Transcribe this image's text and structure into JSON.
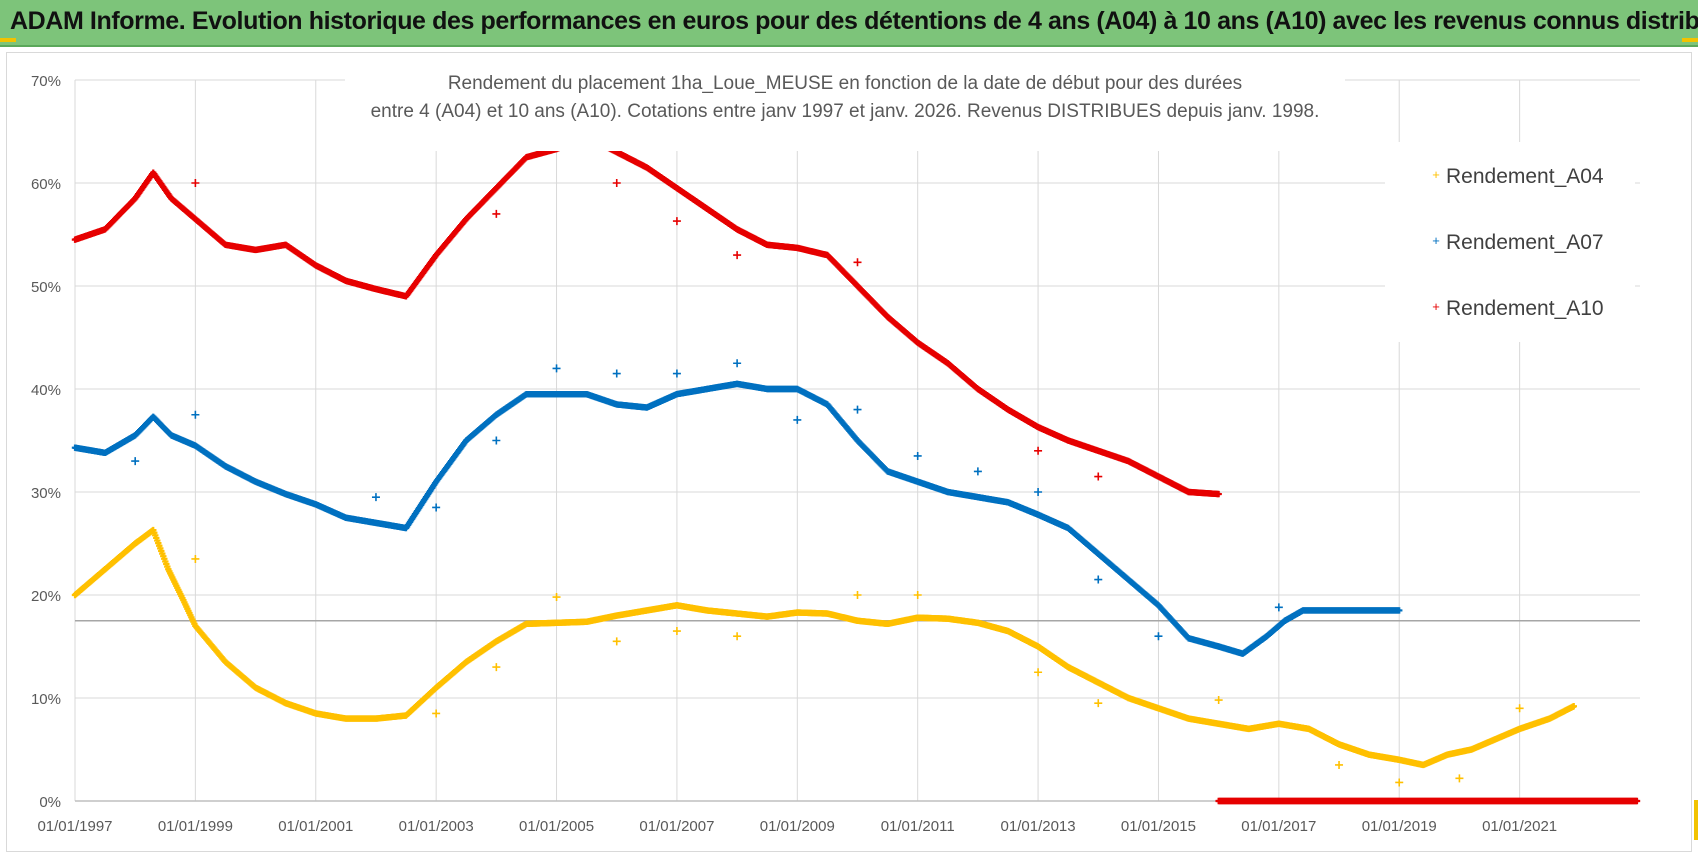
{
  "banner": {
    "title": "ADAM Informe. Evolution historique des performances en euros pour des détentions de 4 ans (A04) à 10 ans (A10) avec les revenus connus distribués"
  },
  "colors": {
    "banner_bg": "#7dc47a",
    "a04": "#ffc000",
    "a07": "#0070c0",
    "a10": "#e60000",
    "grid": "#d9d9d9",
    "corner": "#f2c200"
  },
  "chart_data": {
    "type": "scatter",
    "title_line1": "Rendement du placement 1ha_Loue_MEUSE en fonction de la date de début pour des durées",
    "title_line2": "entre 4 (A04) et 10 ans (A10). Cotations entre janv 1997 et janv. 2026. Revenus DISTRIBUES depuis janv. 1998.",
    "xlabel": "",
    "ylabel": "",
    "x_range": [
      1997.0,
      2023.0
    ],
    "ylim": [
      0,
      70
    ],
    "y_ticks": [
      "0%",
      "10%",
      "20%",
      "30%",
      "40%",
      "50%",
      "60%",
      "70%"
    ],
    "x_tick_labels": [
      "01/01/1997",
      "01/01/1999",
      "01/01/2001",
      "01/01/2003",
      "01/01/2005",
      "01/01/2007",
      "01/01/2009",
      "01/01/2011",
      "01/01/2013",
      "01/01/2015",
      "01/01/2017",
      "01/01/2019",
      "01/01/2021"
    ],
    "x_tick_values": [
      1997,
      1999,
      2001,
      2003,
      2005,
      2007,
      2009,
      2011,
      2013,
      2015,
      2017,
      2019,
      2021
    ],
    "reference_line_y": 17.5,
    "legend_position": "right",
    "series": [
      {
        "name": "Rendement_A04",
        "color": "#ffc000",
        "points": [
          [
            1997.0,
            20.0
          ],
          [
            1997.4,
            22.0
          ],
          [
            1997.8,
            24.0
          ],
          [
            1998.0,
            25.0
          ],
          [
            1998.3,
            26.3
          ],
          [
            1998.55,
            22.5
          ],
          [
            1998.8,
            19.5
          ],
          [
            1999.0,
            17.0
          ],
          [
            1999.5,
            13.5
          ],
          [
            2000.0,
            11.0
          ],
          [
            2000.5,
            9.5
          ],
          [
            2001.0,
            8.5
          ],
          [
            2001.5,
            8.0
          ],
          [
            2002.0,
            8.0
          ],
          [
            2002.5,
            8.3
          ],
          [
            2003.0,
            11.0
          ],
          [
            2003.5,
            13.5
          ],
          [
            2004.0,
            15.5
          ],
          [
            2004.5,
            17.2
          ],
          [
            2005.0,
            17.3
          ],
          [
            2005.5,
            17.4
          ],
          [
            2006.0,
            18.0
          ],
          [
            2006.5,
            18.5
          ],
          [
            2007.0,
            19.0
          ],
          [
            2007.5,
            18.5
          ],
          [
            2008.0,
            18.2
          ],
          [
            2008.5,
            17.9
          ],
          [
            2009.0,
            18.3
          ],
          [
            2009.5,
            18.2
          ],
          [
            2010.0,
            17.5
          ],
          [
            2010.5,
            17.2
          ],
          [
            2011.0,
            17.8
          ],
          [
            2011.5,
            17.7
          ],
          [
            2012.0,
            17.3
          ],
          [
            2012.5,
            16.5
          ],
          [
            2013.0,
            15.0
          ],
          [
            2013.5,
            13.0
          ],
          [
            2014.0,
            11.5
          ],
          [
            2014.5,
            10.0
          ],
          [
            2015.0,
            9.0
          ],
          [
            2015.5,
            8.0
          ],
          [
            2016.0,
            7.5
          ],
          [
            2016.5,
            7.0
          ],
          [
            2017.0,
            7.5
          ],
          [
            2017.5,
            7.0
          ],
          [
            2018.0,
            5.5
          ],
          [
            2018.5,
            4.5
          ],
          [
            2019.0,
            4.0
          ],
          [
            2019.4,
            3.5
          ],
          [
            2019.8,
            4.5
          ],
          [
            2020.2,
            5.0
          ],
          [
            2020.6,
            6.0
          ],
          [
            2021.0,
            7.0
          ],
          [
            2021.5,
            8.0
          ],
          [
            2021.9,
            9.2
          ]
        ],
        "outliers": [
          [
            1999.0,
            23.5
          ],
          [
            2003.0,
            8.5
          ],
          [
            2004.0,
            13.0
          ],
          [
            2005.0,
            19.8
          ],
          [
            2006.0,
            15.5
          ],
          [
            2007.0,
            16.5
          ],
          [
            2008.0,
            16.0
          ],
          [
            2010.0,
            20.0
          ],
          [
            2011.0,
            20.0
          ],
          [
            2013.0,
            12.5
          ],
          [
            2014.0,
            9.5
          ],
          [
            2016.0,
            9.8
          ],
          [
            2018.0,
            3.5
          ],
          [
            2019.0,
            1.8
          ],
          [
            2020.0,
            2.2
          ],
          [
            2021.0,
            9.0
          ]
        ]
      },
      {
        "name": "Rendement_A07",
        "color": "#0070c0",
        "points": [
          [
            1997.0,
            34.3
          ],
          [
            1997.5,
            33.8
          ],
          [
            1998.0,
            35.5
          ],
          [
            1998.3,
            37.3
          ],
          [
            1998.6,
            35.5
          ],
          [
            1999.0,
            34.5
          ],
          [
            1999.5,
            32.5
          ],
          [
            2000.0,
            31.0
          ],
          [
            2000.5,
            29.8
          ],
          [
            2001.0,
            28.8
          ],
          [
            2001.5,
            27.5
          ],
          [
            2002.0,
            27.0
          ],
          [
            2002.5,
            26.5
          ],
          [
            2003.0,
            31.0
          ],
          [
            2003.5,
            35.0
          ],
          [
            2004.0,
            37.5
          ],
          [
            2004.5,
            39.5
          ],
          [
            2005.0,
            39.5
          ],
          [
            2005.5,
            39.5
          ],
          [
            2006.0,
            38.5
          ],
          [
            2006.5,
            38.2
          ],
          [
            2007.0,
            39.5
          ],
          [
            2007.5,
            40.0
          ],
          [
            2008.0,
            40.5
          ],
          [
            2008.5,
            40.0
          ],
          [
            2009.0,
            40.0
          ],
          [
            2009.5,
            38.5
          ],
          [
            2010.0,
            35.0
          ],
          [
            2010.5,
            32.0
          ],
          [
            2011.0,
            31.0
          ],
          [
            2011.5,
            30.0
          ],
          [
            2012.0,
            29.5
          ],
          [
            2012.5,
            29.0
          ],
          [
            2013.0,
            27.8
          ],
          [
            2013.5,
            26.5
          ],
          [
            2014.0,
            24.0
          ],
          [
            2014.5,
            21.5
          ],
          [
            2015.0,
            19.0
          ],
          [
            2015.5,
            15.8
          ],
          [
            2016.0,
            15.0
          ],
          [
            2016.4,
            14.3
          ],
          [
            2016.8,
            16.0
          ],
          [
            2017.1,
            17.5
          ],
          [
            2017.4,
            18.5
          ],
          [
            2018.0,
            18.5
          ],
          [
            2018.5,
            18.5
          ],
          [
            2019.0,
            18.5
          ]
        ],
        "outliers": [
          [
            1998.0,
            33.0
          ],
          [
            1999.0,
            37.5
          ],
          [
            2002.0,
            29.5
          ],
          [
            2003.0,
            28.5
          ],
          [
            2004.0,
            35.0
          ],
          [
            2005.0,
            42.0
          ],
          [
            2006.0,
            41.5
          ],
          [
            2007.0,
            41.5
          ],
          [
            2008.0,
            42.5
          ],
          [
            2009.0,
            37.0
          ],
          [
            2010.0,
            38.0
          ],
          [
            2011.0,
            33.5
          ],
          [
            2012.0,
            32.0
          ],
          [
            2013.0,
            30.0
          ],
          [
            2014.0,
            21.5
          ],
          [
            2015.0,
            16.0
          ],
          [
            2017.0,
            18.8
          ]
        ]
      },
      {
        "name": "Rendement_A10",
        "color": "#e60000",
        "points": [
          [
            1997.0,
            54.5
          ],
          [
            1997.5,
            55.5
          ],
          [
            1998.0,
            58.5
          ],
          [
            1998.3,
            61.0
          ],
          [
            1998.6,
            58.5
          ],
          [
            1999.0,
            56.5
          ],
          [
            1999.5,
            54.0
          ],
          [
            2000.0,
            53.5
          ],
          [
            2000.5,
            54.0
          ],
          [
            2001.0,
            52.0
          ],
          [
            2001.5,
            50.5
          ],
          [
            2002.0,
            49.7
          ],
          [
            2002.5,
            49.0
          ],
          [
            2003.0,
            53.0
          ],
          [
            2003.5,
            56.5
          ],
          [
            2004.0,
            59.5
          ],
          [
            2004.5,
            62.5
          ],
          [
            2005.0,
            63.3
          ],
          [
            2005.5,
            64.5
          ],
          [
            2006.0,
            63.0
          ],
          [
            2006.5,
            61.5
          ],
          [
            2007.0,
            59.5
          ],
          [
            2007.5,
            57.5
          ],
          [
            2008.0,
            55.5
          ],
          [
            2008.5,
            54.0
          ],
          [
            2009.0,
            53.7
          ],
          [
            2009.5,
            53.0
          ],
          [
            2010.0,
            50.0
          ],
          [
            2010.5,
            47.0
          ],
          [
            2011.0,
            44.5
          ],
          [
            2011.5,
            42.5
          ],
          [
            2012.0,
            40.0
          ],
          [
            2012.5,
            38.0
          ],
          [
            2013.0,
            36.3
          ],
          [
            2013.5,
            35.0
          ],
          [
            2014.0,
            34.0
          ],
          [
            2014.5,
            33.0
          ],
          [
            2015.0,
            31.5
          ],
          [
            2015.5,
            30.0
          ],
          [
            2016.0,
            29.8
          ]
        ],
        "outliers": [
          [
            1999.0,
            60.0
          ],
          [
            2004.0,
            57.0
          ],
          [
            2006.0,
            60.0
          ],
          [
            2007.0,
            56.3
          ],
          [
            2008.0,
            53.0
          ],
          [
            2010.0,
            52.3
          ],
          [
            2013.0,
            34.0
          ],
          [
            2014.0,
            31.5
          ]
        ],
        "zero_segment": [
          2016.0,
          2022.95
        ]
      }
    ]
  }
}
